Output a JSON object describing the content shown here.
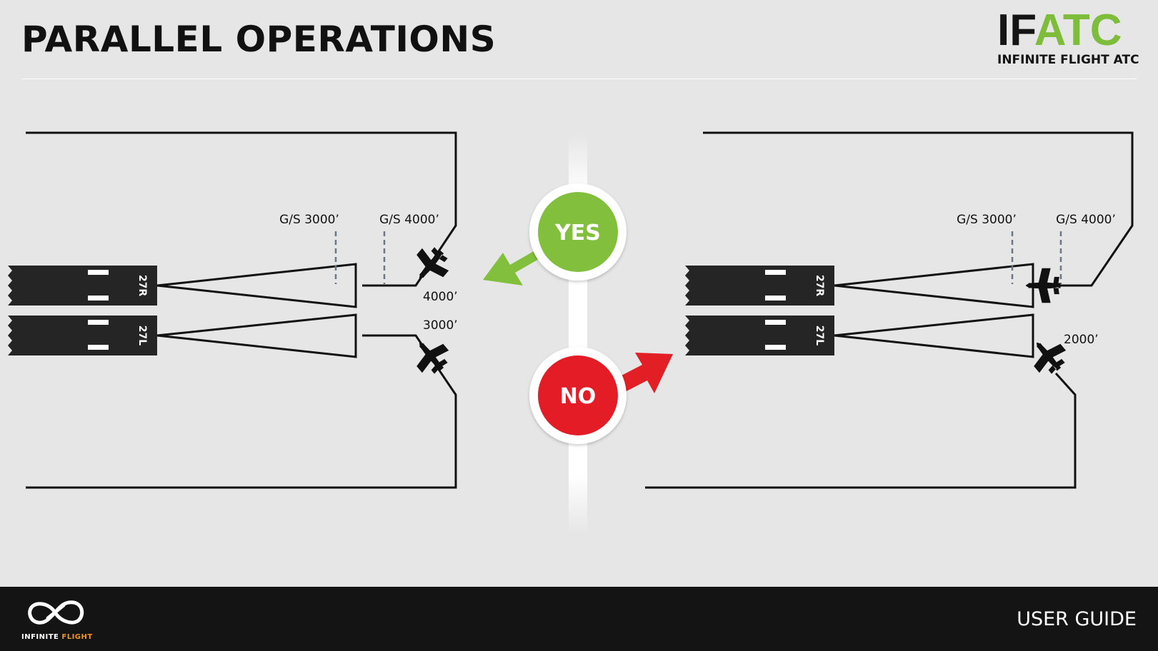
{
  "header": {
    "title": "PARALLEL OPERATIONS",
    "logo_text_dark": "IF",
    "logo_text_green": "ATC",
    "logo_subtitle": "INFINITE FLIGHT ATC"
  },
  "diagram": {
    "left": {
      "runway_top": "27R",
      "runway_bottom": "27L",
      "gs_label_1": "G/S 3000’",
      "gs_label_2": "G/S 4000’",
      "alt_top": "4000’",
      "alt_bottom": "3000’"
    },
    "right": {
      "runway_top": "27R",
      "runway_bottom": "27L",
      "gs_label_1": "G/S 3000’",
      "gs_label_2": "G/S 4000’",
      "alt_bottom": "2000’"
    },
    "yes_label": "YES",
    "no_label": "NO",
    "colors": {
      "yes": "#82bf3c",
      "no": "#e31f26",
      "ink": "#111111",
      "runway": "#252525"
    }
  },
  "footer": {
    "brand_main": "INFINITE",
    "brand_accent": "FLIGHT",
    "label": "USER GUIDE"
  }
}
